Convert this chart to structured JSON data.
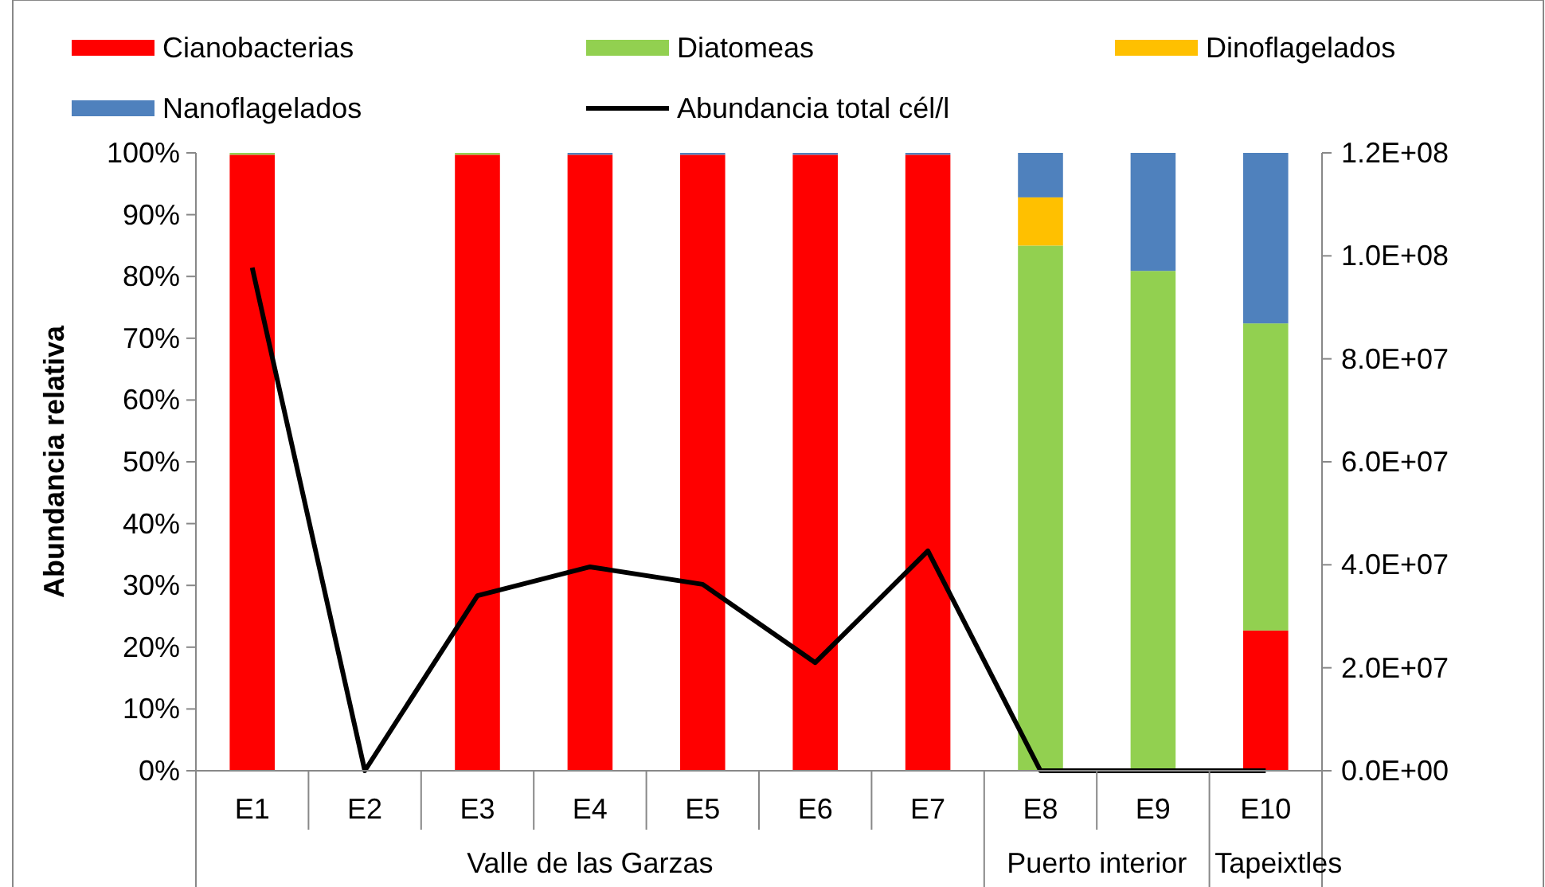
{
  "chart_data": {
    "type": "bar",
    "stacked": true,
    "ylabel": "Abundancia  relativa",
    "categories": [
      "E1",
      "E2",
      "E3",
      "E4",
      "E5",
      "E6",
      "E7",
      "E8",
      "E9",
      "E10"
    ],
    "series": [
      {
        "name": "Cianobacterias",
        "color": "#ff0000",
        "values": [
          99.7,
          0,
          99.7,
          99.7,
          99.7,
          99.7,
          99.7,
          0,
          0,
          22.7
        ]
      },
      {
        "name": "Diatomeas",
        "color": "#92d050",
        "values": [
          0.3,
          0,
          0.3,
          0,
          0,
          0,
          0,
          85,
          80.9,
          49.7
        ]
      },
      {
        "name": "Dinoflagelados",
        "color": "#ffc000",
        "values": [
          0,
          0,
          0,
          0,
          0,
          0,
          0,
          7.8,
          0,
          0
        ]
      },
      {
        "name": "Nanoflagelados",
        "color": "#4f81bd",
        "values": [
          0,
          0,
          0,
          0.3,
          0.3,
          0.3,
          0.3,
          7.2,
          19.1,
          27.6
        ]
      },
      {
        "name": "Abundancia total cél/l",
        "type": "line",
        "axis": "y2",
        "color": "#000000",
        "values": [
          97700000,
          0,
          34000000,
          39600000,
          36200000,
          21000000,
          42700000,
          0,
          0,
          0
        ]
      }
    ],
    "ylim": [
      0,
      100
    ],
    "yticks": [
      {
        "value": 0,
        "label": "0%"
      },
      {
        "value": 10,
        "label": "10%"
      },
      {
        "value": 20,
        "label": "20%"
      },
      {
        "value": 30,
        "label": "30%"
      },
      {
        "value": 40,
        "label": "40%"
      },
      {
        "value": 50,
        "label": "50%"
      },
      {
        "value": 60,
        "label": "60%"
      },
      {
        "value": 70,
        "label": "70%"
      },
      {
        "value": 80,
        "label": "80%"
      },
      {
        "value": 90,
        "label": "90%"
      },
      {
        "value": 100,
        "label": "100%"
      }
    ],
    "y2lim": [
      0,
      120000000
    ],
    "y2ticks": [
      {
        "value": 0,
        "label": "0.0E+00"
      },
      {
        "value": 20000000,
        "label": "2.0E+07"
      },
      {
        "value": 40000000,
        "label": "4.0E+07"
      },
      {
        "value": 60000000,
        "label": "6.0E+07"
      },
      {
        "value": 80000000,
        "label": "8.0E+07"
      },
      {
        "value": 100000000,
        "label": "1.0E+08"
      },
      {
        "value": 120000000,
        "label": "1.2E+08"
      }
    ],
    "annotations": [
      "Valle de las Garzas",
      "Puerto interior",
      "Tapeixtles"
    ],
    "legend": "top",
    "grid": false,
    "marker": "none",
    "line_style": "solid"
  }
}
